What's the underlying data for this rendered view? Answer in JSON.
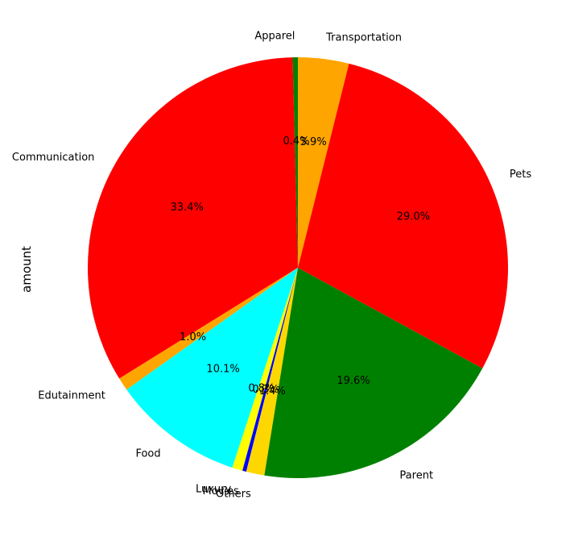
{
  "chart_data": {
    "type": "pie",
    "ylabel": "amount",
    "start_angle_deg": 90,
    "counterclock": true,
    "slices": [
      {
        "label": "Apparel",
        "pct_label": "0.4%",
        "value": 0.4,
        "color": "#008000"
      },
      {
        "label": "Communication",
        "pct_label": "33.4%",
        "value": 33.4,
        "color": "#ff0000"
      },
      {
        "label": "Edutainment",
        "pct_label": "1.0%",
        "value": 1.0,
        "color": "#ffa500"
      },
      {
        "label": "Food",
        "pct_label": "10.1%",
        "value": 10.1,
        "color": "#00ffff"
      },
      {
        "label": "Luxury",
        "pct_label": "0.8%",
        "value": 0.8,
        "color": "#ffff00"
      },
      {
        "label": "Movies",
        "pct_label": "0.3%",
        "value": 0.3,
        "color": "#0000ff"
      },
      {
        "label": "Others",
        "pct_label": "1.4%",
        "value": 1.4,
        "color": "#ffd700"
      },
      {
        "label": "Parent",
        "pct_label": "19.6%",
        "value": 19.6,
        "color": "#008000"
      },
      {
        "label": "Pets",
        "pct_label": "29.0%",
        "value": 29.0,
        "color": "#ff0000"
      },
      {
        "label": "Transportation",
        "pct_label": "3.9%",
        "value": 3.9,
        "color": "#ffa500"
      }
    ]
  }
}
